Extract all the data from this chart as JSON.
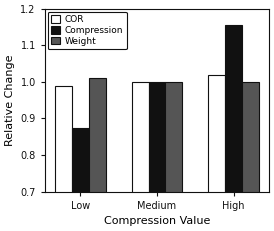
{
  "categories": [
    "Low",
    "Medium",
    "High"
  ],
  "series": {
    "COR": [
      0.99,
      1.0,
      1.02
    ],
    "Compression": [
      0.875,
      1.0,
      1.155
    ],
    "Weight": [
      1.01,
      1.0,
      1.0
    ]
  },
  "bar_colors": {
    "COR": "#ffffff",
    "Compression": "#111111",
    "Weight": "#555555"
  },
  "bar_edgecolors": {
    "COR": "#111111",
    "Compression": "#111111",
    "Weight": "#111111"
  },
  "legend_labels": [
    "COR",
    "Compression",
    "Weight"
  ],
  "legend_colors": {
    "COR": "#ffffff",
    "Compression": "#111111",
    "Weight": "#555555"
  },
  "xlabel": "Compression Value",
  "ylabel": "Relative Change",
  "ylim": [
    0.7,
    1.2
  ],
  "yticks": [
    0.7,
    0.8,
    0.9,
    1.0,
    1.1,
    1.2
  ],
  "bar_width": 0.22,
  "background_color": "#ffffff",
  "axis_color": "#111111",
  "legend_fontsize": 6.5,
  "tick_fontsize": 7,
  "label_fontsize": 8
}
